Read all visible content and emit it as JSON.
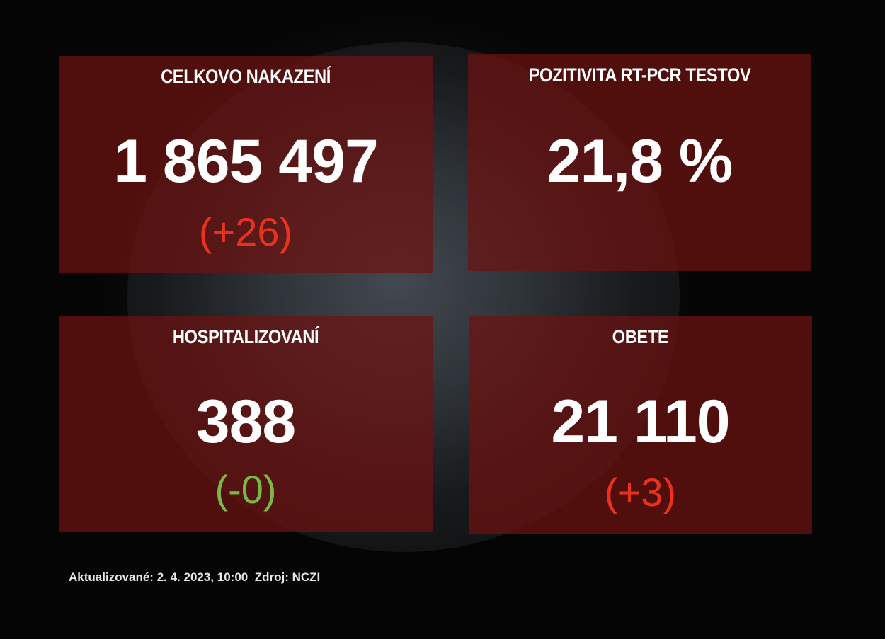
{
  "panels": [
    {
      "title": "CELKOVO NAKAZENÍ",
      "value": "1 865 497",
      "delta": "(+26)"
    },
    {
      "title": "POZITIVITA RT-PCR TESTOV",
      "value": "21,8 %"
    },
    {
      "title": "HOSPITALIZOVANÍ",
      "value": "388",
      "delta": "(-0)"
    },
    {
      "title": "OBETE",
      "value": "21 110",
      "delta": "(+3)"
    }
  ],
  "footer": {
    "updated": "Aktualizované: 2. 4. 2023, 10:00",
    "source": "Zdroj: NCZI"
  },
  "colors": {
    "panel": "#6e1210",
    "increase": "#e8321e",
    "no_change": "#7ab648"
  }
}
